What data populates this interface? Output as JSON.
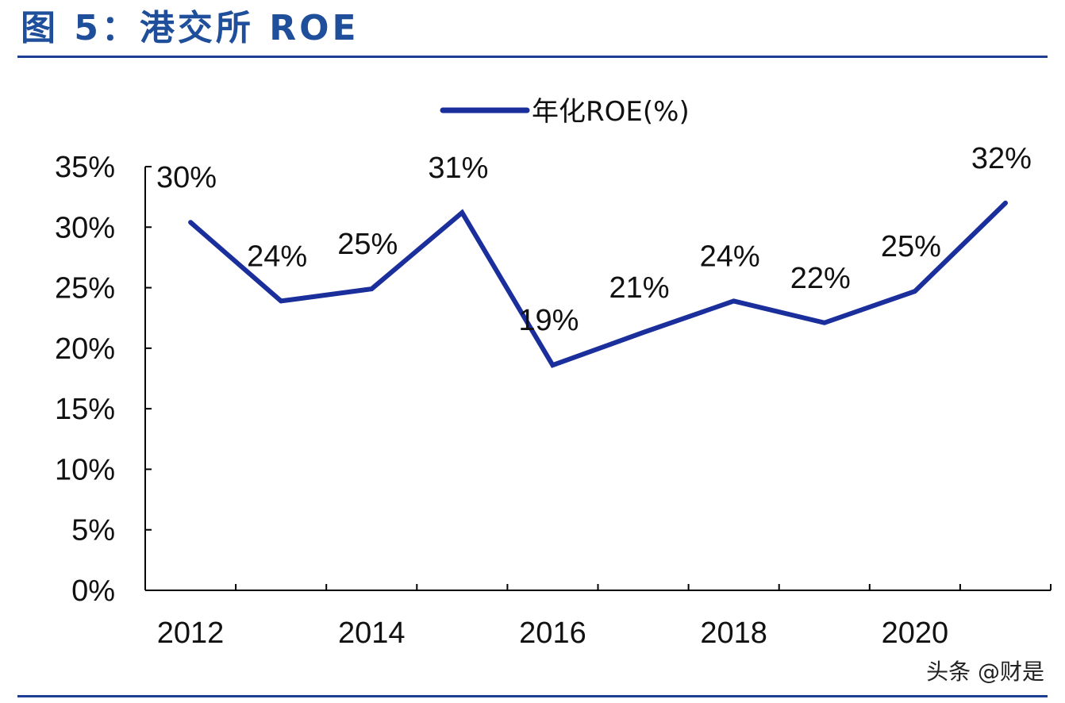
{
  "header": {
    "title": "图 5：港交所 ROE"
  },
  "watermark": "头条 @财是",
  "colors": {
    "title": "#1f4e9a",
    "rule": "#1c3f94",
    "line": "#1a2f9c"
  },
  "chart_data": {
    "type": "line",
    "title": "",
    "xlabel": "",
    "ylabel": "",
    "legend": {
      "position": "top-center",
      "entries": [
        "年化ROE(%)"
      ]
    },
    "x": [
      "2012",
      "2013",
      "2014",
      "2015",
      "2016",
      "2017",
      "2018",
      "2019",
      "2020",
      "2021"
    ],
    "x_tick_labels": [
      "2012",
      "",
      "2014",
      "",
      "2016",
      "",
      "2018",
      "",
      "2020",
      ""
    ],
    "series": [
      {
        "name": "年化ROE(%)",
        "values": [
          30.4,
          23.9,
          24.9,
          31.2,
          18.6,
          21.3,
          23.9,
          22.1,
          24.7,
          32.0
        ],
        "data_labels": [
          "30%",
          "24%",
          "25%",
          "31%",
          "19%",
          "21%",
          "24%",
          "22%",
          "25%",
          "32%"
        ]
      }
    ],
    "ylim": [
      0,
      35
    ],
    "y_ticks": [
      0,
      5,
      10,
      15,
      20,
      25,
      30,
      35
    ],
    "y_tick_labels": [
      "0%",
      "5%",
      "10%",
      "15%",
      "20%",
      "25%",
      "30%",
      "35%"
    ],
    "grid": false
  }
}
